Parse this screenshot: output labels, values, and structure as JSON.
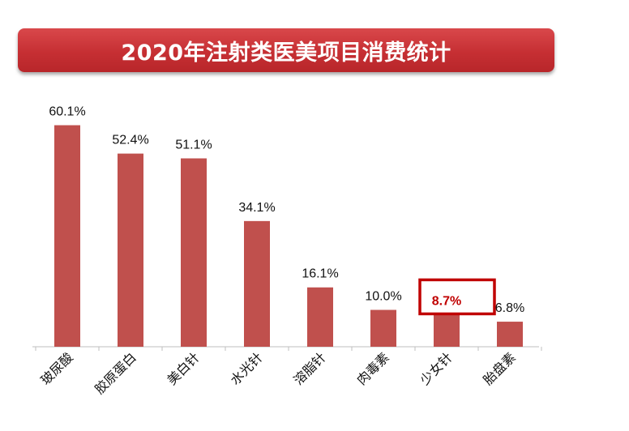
{
  "title": "2020年注射类医美项目消费统计",
  "colors": {
    "bar": "#c0504d",
    "banner": "#c62f33",
    "highlight": "#c00000",
    "axis": "#bfbfbf"
  },
  "chart_data": {
    "type": "bar",
    "categories": [
      "玻尿酸",
      "胶原蛋白",
      "美白针",
      "水光针",
      "溶脂针",
      "肉毒素",
      "少女针",
      "胎盘素"
    ],
    "values": [
      60.1,
      52.4,
      51.1,
      34.1,
      16.1,
      10.0,
      8.7,
      6.8
    ],
    "data_labels": [
      "60.1%",
      "52.4%",
      "51.1%",
      "34.1%",
      "16.1%",
      "10.0%",
      "8.7%",
      "6.8%"
    ],
    "highlighted_category": "少女针",
    "ylim": [
      0,
      70
    ],
    "grid": false,
    "legend": "none",
    "xlabel": "",
    "ylabel": ""
  }
}
